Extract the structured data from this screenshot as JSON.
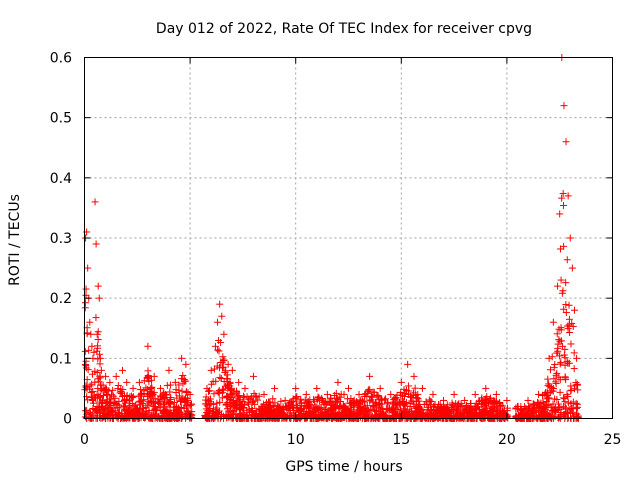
{
  "chart_data": {
    "type": "scatter",
    "title": "Day 012 of 2022, Rate Of TEC Index for receiver cpvg",
    "xlabel": "GPS time / hours",
    "ylabel": "ROTI / TECUs",
    "xlim": [
      0,
      25
    ],
    "ylim": [
      0,
      0.6
    ],
    "xticks": [
      "0",
      "5",
      "10",
      "15",
      "20",
      "25"
    ],
    "yticks": [
      "0",
      "0.1",
      "0.2",
      "0.3",
      "0.4",
      "0.5",
      "0.6"
    ],
    "grid": true,
    "marker": "+",
    "color": "#ff0000",
    "series": [
      {
        "values_envelope_note": "",
        "x": [
          0.05,
          0.1,
          0.15,
          0.2,
          0.25,
          0.3,
          0.35,
          0.4,
          0.45,
          0.5,
          0.55,
          0.6,
          0.65,
          0.7,
          0.75,
          0.8,
          1.0,
          1.2,
          1.5,
          1.8,
          2.0,
          2.3,
          2.6,
          3.0,
          3.3,
          3.6,
          4.0,
          4.3,
          4.6,
          4.8,
          5.0,
          5.8,
          6.0,
          6.2,
          6.3,
          6.4,
          6.5,
          6.6,
          6.8,
          7.0,
          7.3,
          7.6,
          8.0,
          8.5,
          9.0,
          9.5,
          10.0,
          10.5,
          11.0,
          11.5,
          12.0,
          12.5,
          13.0,
          13.5,
          14.0,
          14.5,
          15.0,
          15.3,
          15.6,
          16.0,
          16.5,
          17.0,
          17.5,
          18.0,
          18.5,
          19.0,
          19.5,
          20.0,
          20.5,
          21.0,
          21.5,
          22.0,
          22.2,
          22.4,
          22.5,
          22.6,
          22.7,
          22.8,
          22.9,
          23.0,
          23.1,
          23.2,
          23.3
        ],
        "y": [
          0.3,
          0.31,
          0.25,
          0.2,
          0.16,
          0.14,
          0.12,
          0.1,
          0.11,
          0.36,
          0.29,
          0.14,
          0.22,
          0.2,
          0.1,
          0.08,
          0.07,
          0.06,
          0.07,
          0.08,
          0.06,
          0.05,
          0.06,
          0.12,
          0.07,
          0.05,
          0.08,
          0.06,
          0.1,
          0.09,
          0.04,
          0.05,
          0.08,
          0.12,
          0.16,
          0.19,
          0.17,
          0.14,
          0.09,
          0.08,
          0.06,
          0.05,
          0.07,
          0.04,
          0.05,
          0.03,
          0.05,
          0.04,
          0.05,
          0.04,
          0.06,
          0.05,
          0.04,
          0.07,
          0.05,
          0.04,
          0.06,
          0.09,
          0.07,
          0.05,
          0.04,
          0.03,
          0.04,
          0.03,
          0.04,
          0.05,
          0.04,
          0.03,
          0.02,
          0.03,
          0.04,
          0.1,
          0.16,
          0.22,
          0.34,
          0.6,
          0.52,
          0.46,
          0.37,
          0.3,
          0.25,
          0.18,
          0.1
        ]
      }
    ]
  }
}
